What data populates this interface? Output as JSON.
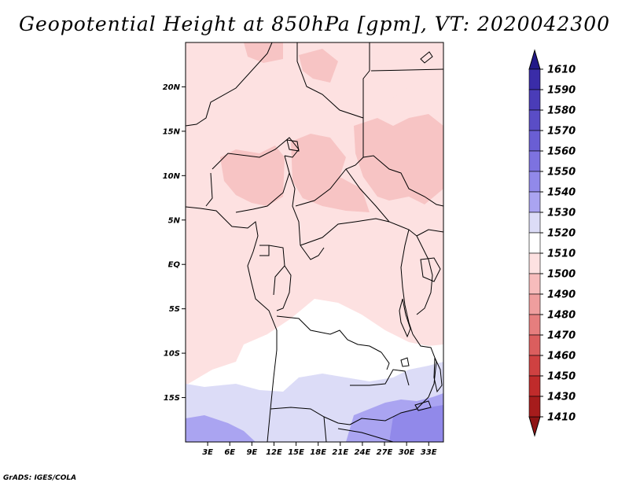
{
  "title": "Geopotential Height at 850hPa [gpm], VT: 2020042300",
  "credit": "GrADS: IGES/COLA",
  "map": {
    "variable": "Geopotential Height",
    "level": "850hPa",
    "units": "gpm",
    "valid_time": "2020042300",
    "lon_range": [
      0,
      35
    ],
    "lat_range": [
      -20,
      25
    ],
    "lat_ticks": [
      {
        "value": 20,
        "label": "20N"
      },
      {
        "value": 15,
        "label": "15N"
      },
      {
        "value": 10,
        "label": "10N"
      },
      {
        "value": 5,
        "label": "5N"
      },
      {
        "value": 0,
        "label": "EQ"
      },
      {
        "value": -5,
        "label": "5S"
      },
      {
        "value": -10,
        "label": "10S"
      },
      {
        "value": -15,
        "label": "15S"
      }
    ],
    "lon_ticks": [
      {
        "value": 3,
        "label": "3E"
      },
      {
        "value": 6,
        "label": "6E"
      },
      {
        "value": 9,
        "label": "9E"
      },
      {
        "value": 12,
        "label": "12E"
      },
      {
        "value": 15,
        "label": "15E"
      },
      {
        "value": 18,
        "label": "18E"
      },
      {
        "value": 21,
        "label": "21E"
      },
      {
        "value": 24,
        "label": "24E"
      },
      {
        "value": 27,
        "label": "27E"
      },
      {
        "value": 30,
        "label": "30E"
      },
      {
        "value": 33,
        "label": "33E"
      }
    ]
  },
  "colorbar": {
    "levels": [
      {
        "label": "1610",
        "color": "#2b1f9a"
      },
      {
        "label": "1590",
        "color": "#3a2ca8"
      },
      {
        "label": "1580",
        "color": "#4a3cb8"
      },
      {
        "label": "1570",
        "color": "#5a4dc6"
      },
      {
        "label": "1560",
        "color": "#6a5ed4"
      },
      {
        "label": "1550",
        "color": "#7d72e0"
      },
      {
        "label": "1540",
        "color": "#9189ea"
      },
      {
        "label": "1530",
        "color": "#aaa4f1"
      },
      {
        "label": "1520",
        "color": "#dcdcf7"
      },
      {
        "label": "1510",
        "color": "#ffffff"
      },
      {
        "label": "1500",
        "color": "#fde1e1"
      },
      {
        "label": "1490",
        "color": "#f7bcbc"
      },
      {
        "label": "1480",
        "color": "#ef9e9e"
      },
      {
        "label": "1470",
        "color": "#e67e7e"
      },
      {
        "label": "1460",
        "color": "#db5e5e"
      },
      {
        "label": "1450",
        "color": "#cf4141"
      },
      {
        "label": "1430",
        "color": "#c02b2b"
      },
      {
        "label": "1410",
        "color": "#a61c1c"
      }
    ],
    "top_arrow_color": "#221888",
    "bottom_arrow_color": "#8e1414"
  }
}
